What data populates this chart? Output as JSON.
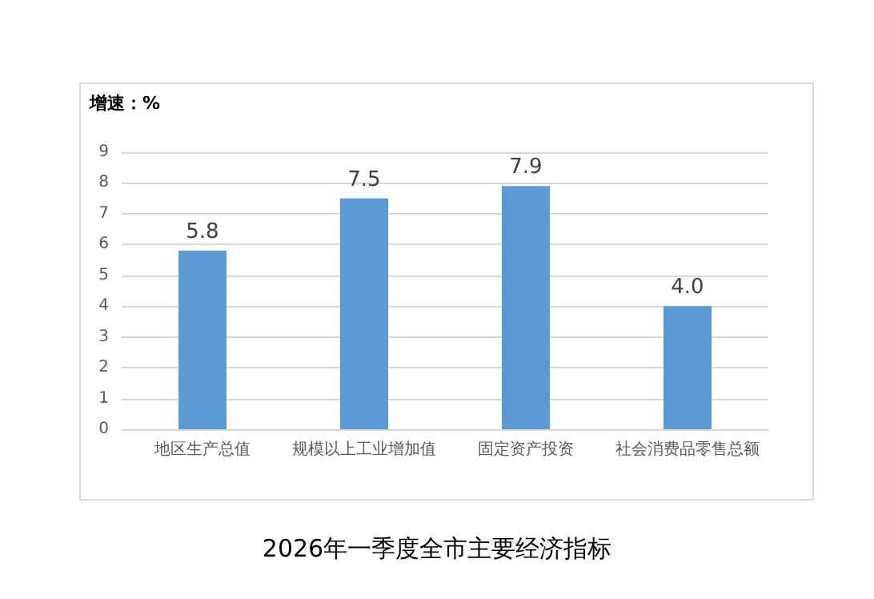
{
  "chart_data": {
    "type": "bar",
    "title": "2026年一季度全市主要经济指标",
    "ylabel": "增速：%",
    "categories": [
      "地区生产总值",
      "规模以上工业增加值",
      "固定资产投资",
      "社会消费品零售总额"
    ],
    "values": [
      5.8,
      7.5,
      7.9,
      4.0
    ],
    "value_labels": [
      "5.8",
      "7.5",
      "7.9",
      "4.0"
    ],
    "color": "#5b9bd5",
    "ylim": [
      0,
      9
    ],
    "yticks": [
      0,
      1,
      2,
      3,
      4,
      5,
      6,
      7,
      8,
      9
    ],
    "grid": "y"
  }
}
